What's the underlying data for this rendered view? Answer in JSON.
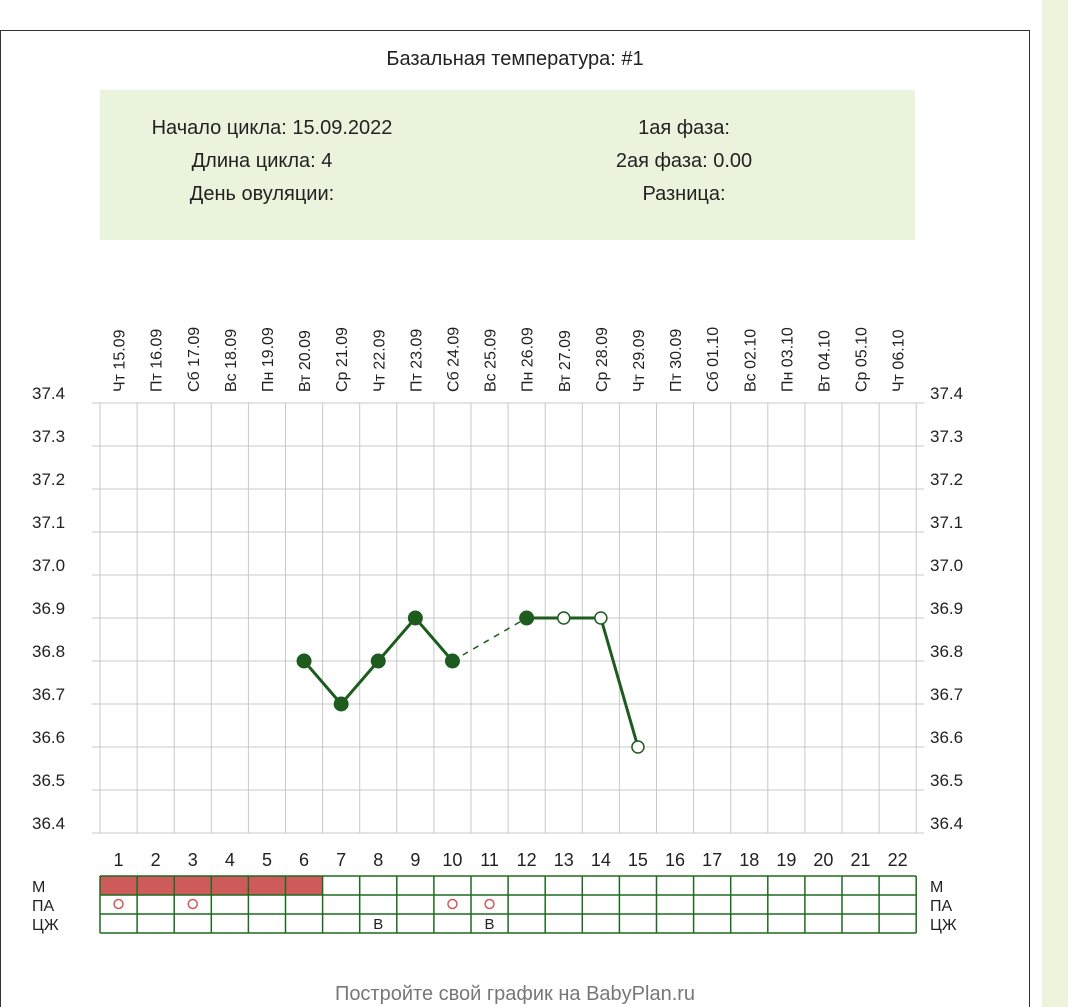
{
  "chart_data": {
    "type": "line",
    "title": "Базальная температура: #1",
    "info": {
      "cycle_start": "Начало цикла: 15.09.2022",
      "cycle_length": "Длина цикла: 4",
      "ovulation_day": "День овуляции:",
      "phase1": "1ая фаза:",
      "phase2": "2ая фаза: 0.00",
      "difference": "Разница:"
    },
    "days": [
      1,
      2,
      3,
      4,
      5,
      6,
      7,
      8,
      9,
      10,
      11,
      12,
      13,
      14,
      15,
      16,
      17,
      18,
      19,
      20,
      21,
      22
    ],
    "dates": [
      "Чт 15.09",
      "Пт 16.09",
      "Сб 17.09",
      "Вс 18.09",
      "Пн 19.09",
      "Вт 20.09",
      "Ср 21.09",
      "Чт 22.09",
      "Пт 23.09",
      "Сб 24.09",
      "Вс 25.09",
      "Пн 26.09",
      "Вт 27.09",
      "Ср 28.09",
      "Чт 29.09",
      "Пт 30.09",
      "Сб 01.10",
      "Вс 02.10",
      "Пн 03.10",
      "Вт 04.10",
      "Ср 05.10",
      "Чт 06.10"
    ],
    "y_ticks": [
      "37.4",
      "37.3",
      "37.2",
      "37.1",
      "37.0",
      "36.9",
      "36.8",
      "36.7",
      "36.6",
      "36.5",
      "36.4"
    ],
    "ylim": [
      36.4,
      37.4
    ],
    "points": [
      {
        "day": 6,
        "temp": 36.8,
        "filled": true
      },
      {
        "day": 7,
        "temp": 36.7,
        "filled": true
      },
      {
        "day": 8,
        "temp": 36.8,
        "filled": true
      },
      {
        "day": 9,
        "temp": 36.9,
        "filled": true
      },
      {
        "day": 10,
        "temp": 36.8,
        "filled": true
      },
      {
        "day": 12,
        "temp": 36.9,
        "filled": true
      },
      {
        "day": 13,
        "temp": 36.9,
        "filled": false
      },
      {
        "day": 14,
        "temp": 36.9,
        "filled": false
      },
      {
        "day": 15,
        "temp": 36.6,
        "filled": false
      }
    ],
    "segments": [
      {
        "from": 6,
        "to": 7,
        "style": "solid"
      },
      {
        "from": 7,
        "to": 8,
        "style": "solid"
      },
      {
        "from": 8,
        "to": 9,
        "style": "solid"
      },
      {
        "from": 9,
        "to": 10,
        "style": "solid"
      },
      {
        "from": 10,
        "to": 12,
        "style": "dashed"
      },
      {
        "from": 12,
        "to": 13,
        "style": "solid"
      },
      {
        "from": 13,
        "to": 14,
        "style": "solid"
      },
      {
        "from": 14,
        "to": 15,
        "style": "solid"
      }
    ],
    "rows": {
      "labels": [
        "М",
        "ПА",
        "ЦЖ"
      ],
      "menstruation_days": [
        1,
        2,
        3,
        4,
        5,
        6
      ],
      "pa_days": [
        1,
        3,
        10,
        11
      ],
      "cm_marks": [
        {
          "day": 8,
          "value": "В"
        },
        {
          "day": 11,
          "value": "В"
        }
      ]
    },
    "colors": {
      "line": "#1e5b1e",
      "grid": "#c8c8c8",
      "row_border": "#1e6b1e",
      "menstruation": "#cd5b5b",
      "pa_marker": "#cd5b5b",
      "info_bg": "#eaf4dc",
      "sidebar": "#eef3dc"
    }
  },
  "footer": "Постройте свой график на BabyPlan.ru"
}
